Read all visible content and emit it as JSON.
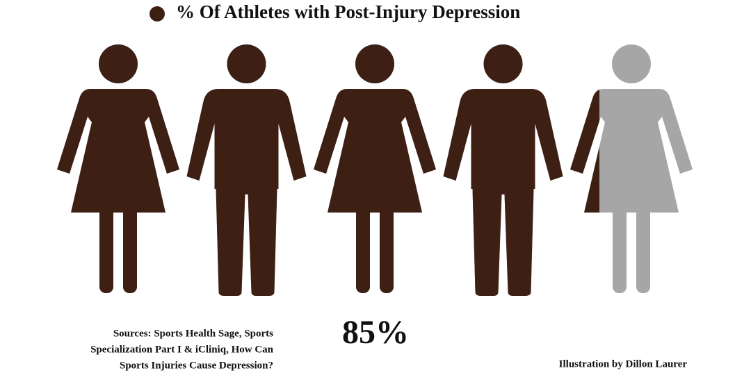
{
  "chart_data": {
    "type": "pictogram",
    "series": [
      {
        "name": "% Of  Athletes with Post-Injury Depression",
        "color": "#3d1f14",
        "values": [
          85
        ],
        "value_labels": [
          "85%"
        ]
      }
    ],
    "icons": [
      "female",
      "male",
      "female",
      "male",
      "female"
    ],
    "empty_color": "#a6a6a6",
    "ylim": [
      0,
      100
    ],
    "source": [
      "Sources:  Sports Health Sage, Sports",
      "Specialization Part I & iCliniq, How Can",
      "Sports Injuries Cause Depression?"
    ],
    "credit": "Illustration by Dillon Laurer"
  }
}
